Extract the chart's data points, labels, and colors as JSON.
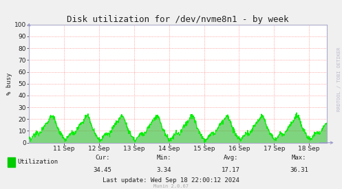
{
  "title": "Disk utilization for /dev/nvme8n1 - by week",
  "ylabel": "% busy",
  "ylim": [
    0,
    100
  ],
  "yticks": [
    0,
    10,
    20,
    30,
    40,
    50,
    60,
    70,
    80,
    90,
    100
  ],
  "line_color": "#00ee00",
  "fill_color": "#00aa00",
  "bg_color": "#f0f0f0",
  "plot_bg_color": "#ffffff",
  "grid_color": "#ff8888",
  "grid_style": ":",
  "border_color": "#aaaacc",
  "x_labels": [
    "11 Sep",
    "12 Sep",
    "13 Sep",
    "14 Sep",
    "15 Sep",
    "16 Sep",
    "17 Sep",
    "18 Sep"
  ],
  "legend_label": "Utilization",
  "legend_color": "#00cc00",
  "stats_cur": "34.45",
  "stats_min": "3.34",
  "stats_avg": "17.17",
  "stats_max": "36.31",
  "last_update": "Last update: Wed Sep 18 22:00:12 2024",
  "munin_version": "Munin 2.0.67",
  "watermark": "RRDTOOL / TOBI OETIKER",
  "title_fontsize": 9,
  "axis_fontsize": 6.5,
  "stats_fontsize": 6.5,
  "watermark_fontsize": 5
}
